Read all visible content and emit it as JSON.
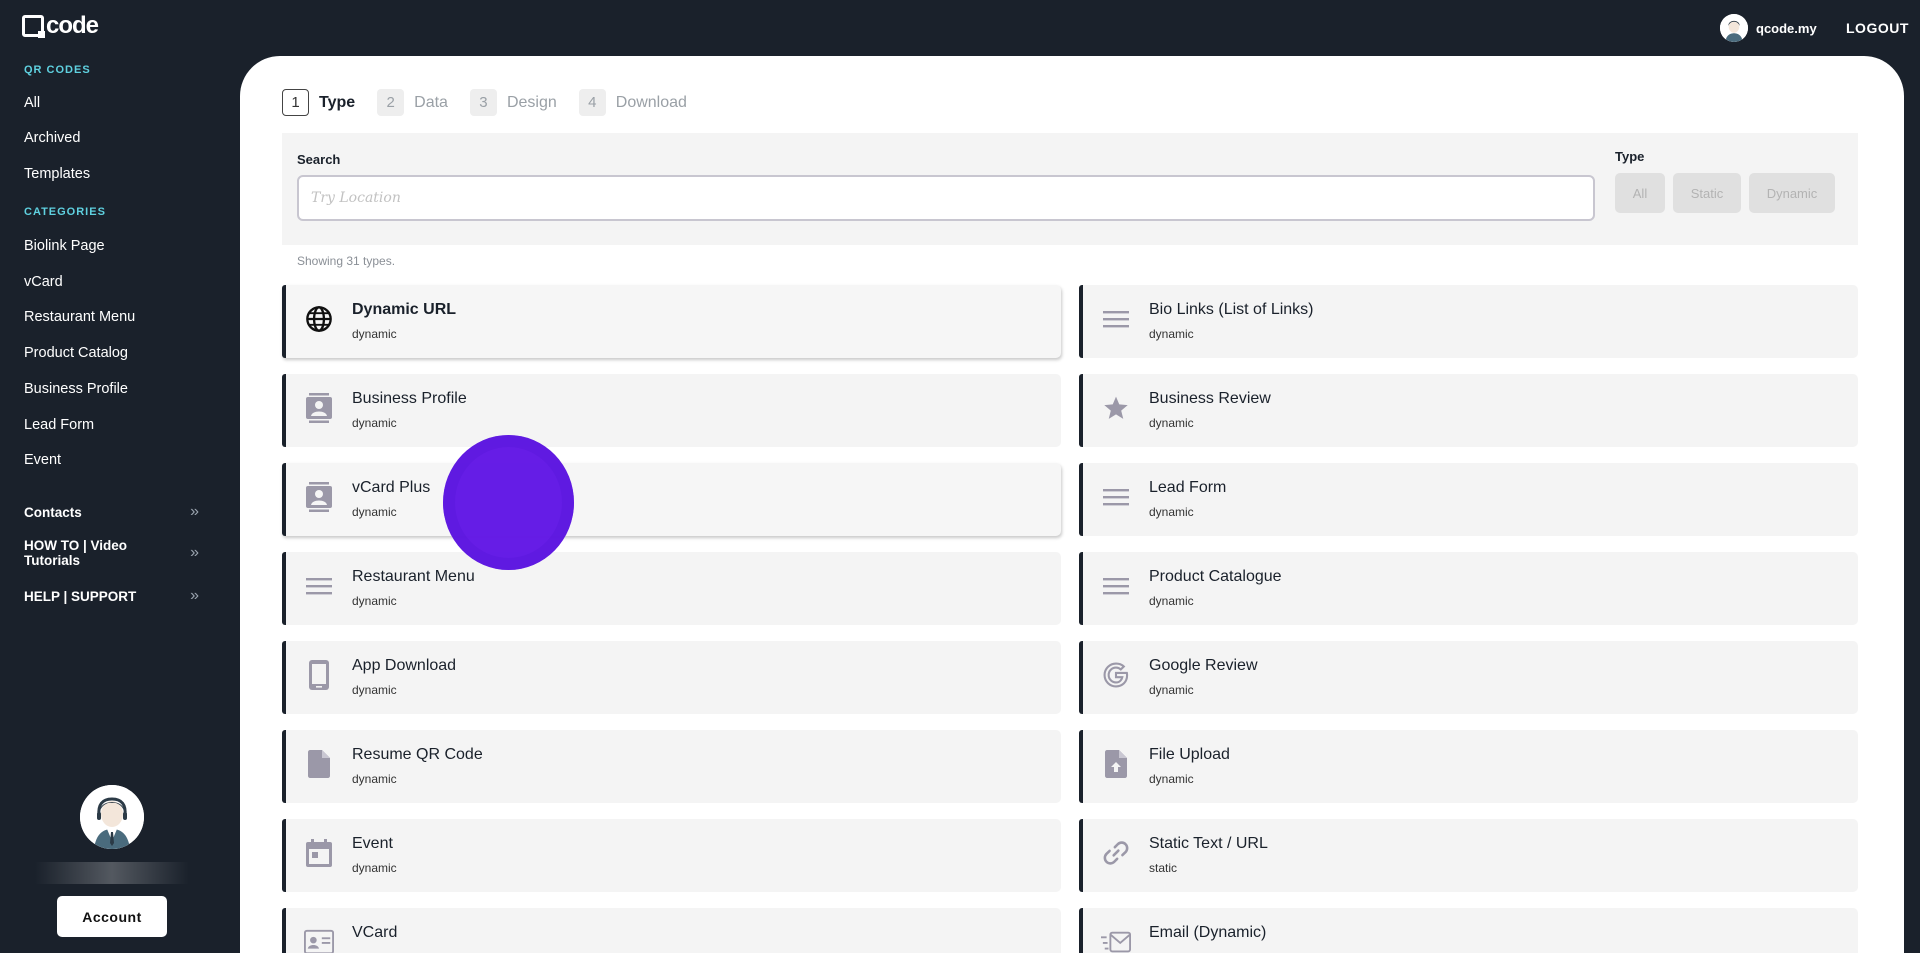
{
  "brand": {
    "logo_text": "code"
  },
  "sidebar": {
    "qr_section": "QR CODES",
    "qr_items": [
      {
        "label": "All"
      },
      {
        "label": "Archived"
      },
      {
        "label": "Templates"
      }
    ],
    "cat_section": "CATEGORIES",
    "cat_items": [
      {
        "label": "Biolink Page"
      },
      {
        "label": "vCard"
      },
      {
        "label": "Restaurant Menu"
      },
      {
        "label": "Product Catalog"
      },
      {
        "label": "Business Profile"
      },
      {
        "label": "Lead Form"
      },
      {
        "label": "Event"
      }
    ],
    "expandables": [
      {
        "label": "Contacts"
      },
      {
        "label": "HOW TO | Video Tutorials"
      },
      {
        "label": "HELP | SUPPORT"
      }
    ],
    "chevron": "»",
    "account_button": "Account"
  },
  "topbar": {
    "user_name": "qcode.my",
    "logout": "LOGOUT"
  },
  "steps": [
    {
      "num": "1",
      "label": "Type",
      "active": true
    },
    {
      "num": "2",
      "label": "Data"
    },
    {
      "num": "3",
      "label": "Design"
    },
    {
      "num": "4",
      "label": "Download"
    }
  ],
  "search": {
    "label": "Search",
    "placeholder": "Try Location",
    "value": "",
    "type_label": "Type",
    "type_options": [
      "All",
      "Static",
      "Dynamic"
    ]
  },
  "results_count": "Showing 31 types.",
  "cards": [
    {
      "title": "Dynamic URL",
      "sub": "dynamic",
      "icon": "globe-icon"
    },
    {
      "title": "Bio Links (List of Links)",
      "sub": "dynamic",
      "icon": "menu-lines-icon"
    },
    {
      "title": "Business Profile",
      "sub": "dynamic",
      "icon": "contact-card-icon"
    },
    {
      "title": "Business Review",
      "sub": "dynamic",
      "icon": "star-icon"
    },
    {
      "title": "vCard Plus",
      "sub": "dynamic",
      "icon": "contact-card-icon"
    },
    {
      "title": "Lead Form",
      "sub": "dynamic",
      "icon": "menu-lines-icon"
    },
    {
      "title": "Restaurant Menu",
      "sub": "dynamic",
      "icon": "menu-lines-icon"
    },
    {
      "title": "Product Catalogue",
      "sub": "dynamic",
      "icon": "menu-lines-icon"
    },
    {
      "title": "App Download",
      "sub": "dynamic",
      "icon": "phone-icon"
    },
    {
      "title": "Google Review",
      "sub": "dynamic",
      "icon": "google-g-icon"
    },
    {
      "title": "Resume QR Code",
      "sub": "dynamic",
      "icon": "document-icon"
    },
    {
      "title": "File Upload",
      "sub": "dynamic",
      "icon": "file-upload-icon"
    },
    {
      "title": "Event",
      "sub": "dynamic",
      "icon": "calendar-icon"
    },
    {
      "title": "Static Text / URL",
      "sub": "static",
      "icon": "link-icon"
    },
    {
      "title": "VCard",
      "sub": "",
      "icon": "id-card-icon"
    },
    {
      "title": "Email (Dynamic)",
      "sub": "",
      "icon": "email-fast-icon"
    }
  ],
  "colors": {
    "sidebar_bg": "#1a212b",
    "section_heading": "#5fd1e0",
    "card_bg": "#f4f4f4",
    "icon_gray": "#9b98a8",
    "cursor_dot": "#6319e6"
  }
}
